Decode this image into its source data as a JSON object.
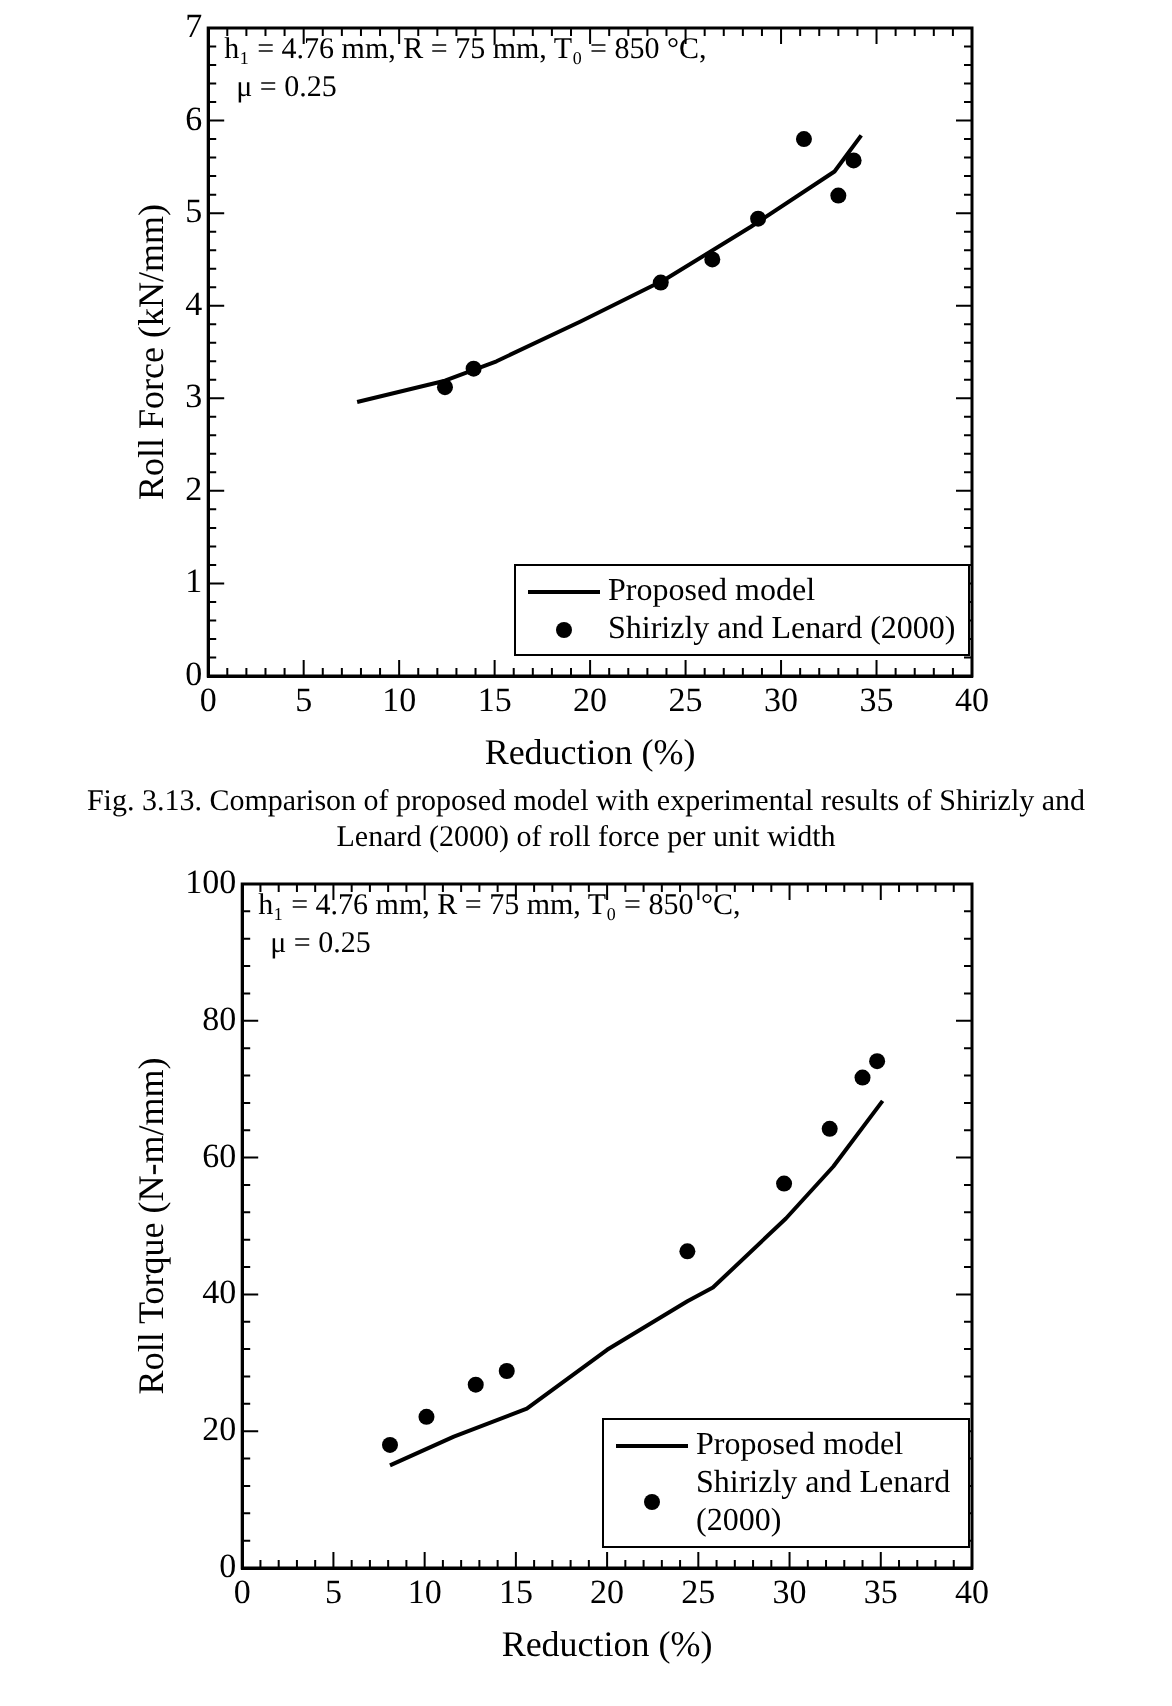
{
  "chart_data": [
    {
      "type": "line",
      "title": "Fig. 3.13. Comparison of proposed model with experimental results of Shirizly and Lenard (2000) of roll force per unit width",
      "xlabel": "Reduction (%)",
      "ylabel": "Roll Force (kN/mm)",
      "annotations": [
        "h₁ = 4.76 mm, R = 75 mm, T₀ = 850 °C,",
        "μ = 0.25"
      ],
      "xlim": [
        0,
        40
      ],
      "xticks": [
        0,
        5,
        10,
        15,
        20,
        25,
        30,
        35,
        40
      ],
      "ylim": [
        0,
        7
      ],
      "yticks": [
        0,
        1,
        2,
        3,
        4,
        5,
        6,
        7
      ],
      "legend": "bottom right",
      "series": [
        {
          "name": "Proposed model",
          "type": "line",
          "color": "#000000",
          "marker": "none",
          "line_style": "solid",
          "x": [
            7.8,
            12.4,
            15.1,
            19.5,
            23.9,
            28.4,
            32.8,
            34.2
          ],
          "values": [
            2.96,
            3.19,
            3.4,
            3.83,
            4.28,
            4.85,
            5.45,
            5.84
          ]
        },
        {
          "name": "Shirizly and Lenard (2000)",
          "type": "scatter",
          "color": "#000000",
          "marker": "circle",
          "x": [
            12.4,
            13.9,
            23.7,
            26.4,
            28.8,
            31.2,
            33.0,
            33.8
          ],
          "values": [
            3.12,
            3.32,
            4.25,
            4.5,
            4.94,
            5.8,
            5.19,
            5.57
          ]
        }
      ]
    },
    {
      "type": "line",
      "xlabel": "Reduction (%)",
      "ylabel": "Roll Torque (N-m/mm)",
      "annotations": [
        "h₁ = 4.76 mm, R = 75 mm, T₀ = 850 °C,",
        "μ = 0.25"
      ],
      "xlim": [
        0,
        40
      ],
      "xticks": [
        0,
        5,
        10,
        15,
        20,
        25,
        30,
        35,
        40
      ],
      "ylim": [
        0,
        100
      ],
      "yticks": [
        0,
        20,
        40,
        60,
        80,
        100
      ],
      "legend": "bottom right",
      "series": [
        {
          "name": "Proposed model",
          "type": "line",
          "color": "#000000",
          "marker": "none",
          "line_style": "solid",
          "x": [
            8.1,
            11.6,
            15.6,
            20.0,
            24.4,
            25.8,
            29.8,
            32.4,
            35.1
          ],
          "values": [
            15,
            19.2,
            23.3,
            31.9,
            39,
            41,
            51.1,
            58.7,
            68.3
          ]
        },
        {
          "name": "Shirizly and Lenard (2000)",
          "type": "scatter",
          "color": "#000000",
          "marker": "circle",
          "x": [
            8.1,
            10.1,
            12.8,
            14.5,
            24.4,
            29.7,
            32.2,
            34.0,
            34.8
          ],
          "values": [
            18,
            22.1,
            26.8,
            28.8,
            46.3,
            56.2,
            64.2,
            71.7,
            74.1
          ]
        }
      ]
    }
  ]
}
